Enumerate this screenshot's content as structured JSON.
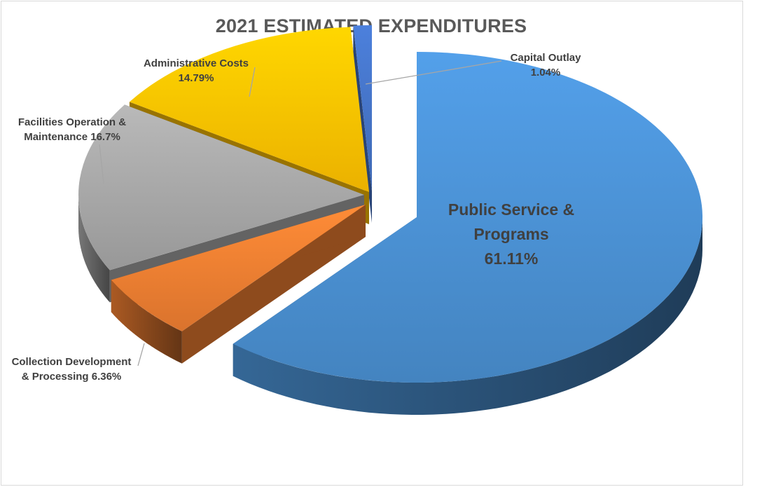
{
  "chart_data": {
    "type": "pie",
    "title": "2021 ESTIMATED EXPENDITURES",
    "slices": [
      {
        "label_lines": [
          "Public Service &",
          "Programs",
          "61.11%"
        ],
        "value": 61.11,
        "color": "#4a8fd1"
      },
      {
        "label_lines": [
          "Collection Development",
          "& Processing 6.36%"
        ],
        "value": 6.36,
        "color": "#ed7d31"
      },
      {
        "label_lines": [
          "Facilities Operation &",
          "Maintenance 16.7%"
        ],
        "value": 16.7,
        "color": "#a5a5a5"
      },
      {
        "label_lines": [
          "Administrative Costs",
          "14.79%"
        ],
        "value": 14.79,
        "color": "#ffc000"
      },
      {
        "label_lines": [
          "Capital Outlay",
          "1.04%"
        ],
        "value": 1.04,
        "color": "#4472c4"
      }
    ]
  }
}
